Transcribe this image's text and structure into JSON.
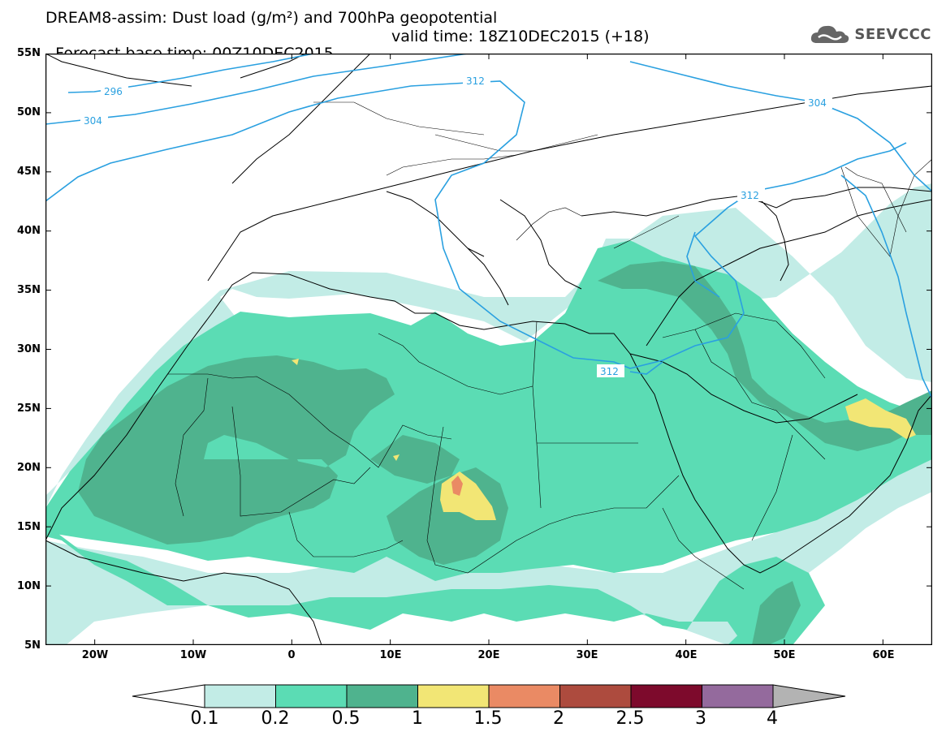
{
  "title": {
    "line1": "DREAM8-assim: Dust load (g/m²) and 700hPa geopotential",
    "base_time": "Forecast base time: 00Z10DEC2015",
    "valid_time": "valid time: 18Z10DEC2015 (+18)"
  },
  "logo": {
    "icon": "cloud-icon",
    "text": "SEEVCCC"
  },
  "map": {
    "lat_range": [
      5,
      55
    ],
    "lon_range": [
      -25,
      65
    ],
    "lat_labels": [
      "55N",
      "50N",
      "45N",
      "40N",
      "35N",
      "30N",
      "25N",
      "20N",
      "15N",
      "10N",
      "5N"
    ],
    "lon_labels": [
      "20W",
      "10W",
      "0",
      "10E",
      "20E",
      "30E",
      "40E",
      "50E",
      "60E"
    ],
    "contour_labels": [
      "296",
      "304",
      "312",
      "312",
      "312",
      "304"
    ]
  },
  "colorbar": {
    "labels": [
      "0.1",
      "0.2",
      "0.5",
      "1",
      "1.5",
      "2",
      "2.5",
      "3",
      "4"
    ],
    "colors": [
      "#ffffff",
      "#c2ece6",
      "#5bdcb4",
      "#4fb38e",
      "#f2e675",
      "#ea8a64",
      "#ad4b3e",
      "#7d0a2c",
      "#946a9d",
      "#b3b3b3"
    ]
  }
}
